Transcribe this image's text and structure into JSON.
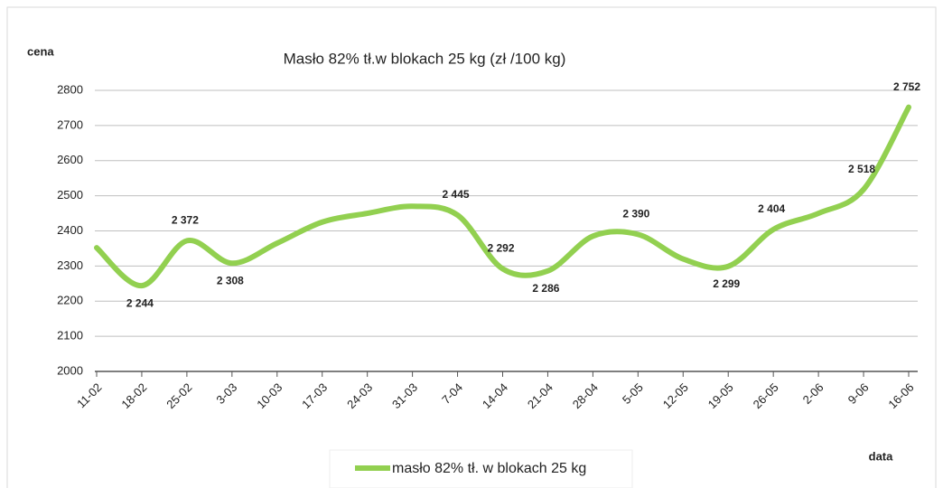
{
  "chart_data": {
    "type": "line",
    "title": "Masło 82% tł.w blokach 25 kg (zł /100 kg)",
    "y_label": "cena",
    "x_label": "data",
    "categories": [
      "11-02",
      "18-02",
      "25-02",
      "3-03",
      "10-03",
      "17-03",
      "24-03",
      "31-03",
      "7-04",
      "14-04",
      "21-04",
      "28-04",
      "5-05",
      "12-05",
      "19-05",
      "26-05",
      "2-06",
      "9-06",
      "16-06"
    ],
    "series": [
      {
        "name": "masło 82% tł. w blokach 25 kg",
        "color": "#92d050",
        "values": [
          2352,
          2244,
          2372,
          2308,
          2365,
          2425,
          2450,
          2470,
          2445,
          2292,
          2286,
          2385,
          2390,
          2320,
          2299,
          2404,
          2450,
          2518,
          2752
        ],
        "value_labels": [
          null,
          "2 244",
          "2 372",
          "2 308",
          null,
          null,
          null,
          null,
          "2 445",
          "2 292",
          "2 286",
          null,
          "2 390",
          null,
          "2 299",
          "2 404",
          null,
          "2 518",
          "2 752"
        ]
      }
    ],
    "ylim": [
      2000,
      2800
    ],
    "yticks": [
      2000,
      2100,
      2200,
      2300,
      2400,
      2500,
      2600,
      2700,
      2800
    ],
    "grid": true,
    "legend": "bottom"
  }
}
